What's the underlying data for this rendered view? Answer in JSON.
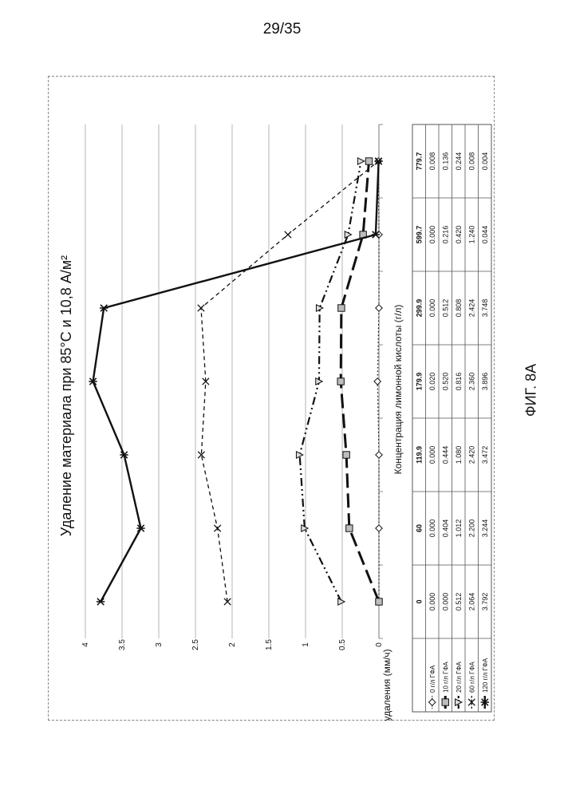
{
  "page": {
    "page_number": "29/35",
    "figure_caption": "ФИГ. 8А"
  },
  "chart_data": {
    "type": "line",
    "title": "Удаление материала при 85°C и 10,8 А/м²",
    "xlabel": "Концентрация лимонной кислоты (г/л)",
    "ylabel": "Скорость удаления (мм/ч)",
    "categories": [
      "0",
      "60",
      "119.9",
      "179.9",
      "299.9",
      "599.7",
      "779.7"
    ],
    "ylim": [
      0,
      4
    ],
    "yticks": [
      "0",
      "0.5",
      "1",
      "1.5",
      "2",
      "2.5",
      "3",
      "3.5",
      "4"
    ],
    "grid": true,
    "legend_placement": "data table",
    "series": [
      {
        "name": "0 г/л ГФА",
        "values": [
          0.0,
          0.0,
          0.0,
          0.02,
          0.0,
          0.0,
          0.008
        ],
        "labels": [
          "0.000",
          "0.000",
          "0.000",
          "0.020",
          "0.000",
          "0.000",
          "0.008"
        ],
        "marker": "diamond",
        "dash": "1.5,3"
      },
      {
        "name": "10 г/л ГФА",
        "values": [
          0.0,
          0.404,
          0.444,
          0.52,
          0.512,
          0.216,
          0.136
        ],
        "labels": [
          "0.000",
          "0.404",
          "0.444",
          "0.520",
          "0.512",
          "0.216",
          "0.136"
        ],
        "marker": "square",
        "dash": "18,7"
      },
      {
        "name": "20 г/л ГФА",
        "values": [
          0.512,
          1.012,
          1.08,
          0.816,
          0.808,
          0.42,
          0.244
        ],
        "labels": [
          "0.512",
          "1.012",
          "1.080",
          "0.816",
          "0.808",
          "0.420",
          "0.244"
        ],
        "marker": "triangle",
        "dash": "10,4,2,4,2,4"
      },
      {
        "name": "60 г/л ГФА",
        "values": [
          2.064,
          2.2,
          2.42,
          2.36,
          2.424,
          1.24,
          0.008
        ],
        "labels": [
          "2.064",
          "2.200",
          "2.420",
          "2.360",
          "2.424",
          "1.240",
          "0.008"
        ],
        "marker": "x",
        "dash": "5,4"
      },
      {
        "name": "120 г/л ГФА",
        "values": [
          3.792,
          3.244,
          3.472,
          3.896,
          3.748,
          0.044,
          0.004
        ],
        "labels": [
          "3.792",
          "3.244",
          "3.472",
          "3.896",
          "3.748",
          "0.044",
          "0.004"
        ],
        "marker": "star",
        "dash": ""
      }
    ]
  },
  "colors": {
    "line": "#111111",
    "grid": "#b5b5b5",
    "marker_fill_square": "#bdbdbd"
  }
}
